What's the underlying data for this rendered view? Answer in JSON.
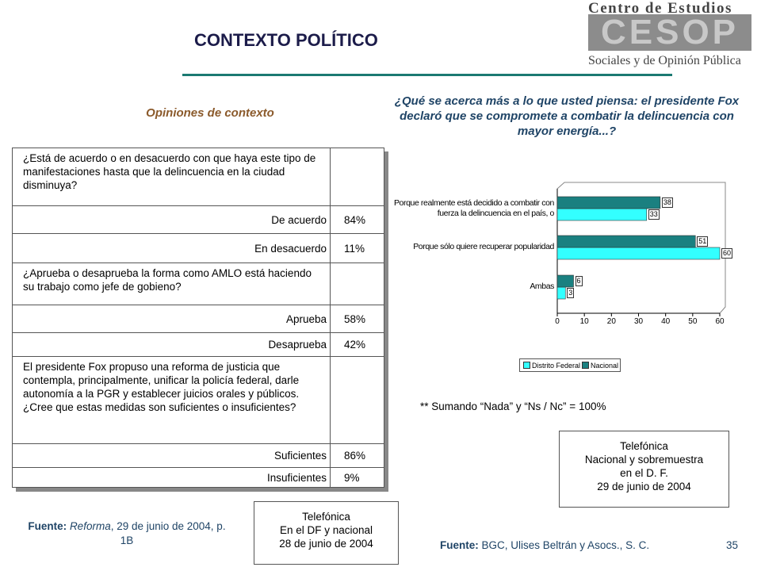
{
  "header": {
    "title": "CONTEXTO POLÍTICO",
    "logo": {
      "line1": "Centro de Estudios",
      "mark": "CESOP",
      "line2": "Sociales y de Opinión Pública"
    }
  },
  "table_title": "Opiniones de contexto",
  "table": {
    "rows": [
      {
        "question": "¿Está de acuerdo o en desacuerdo con que haya este tipo de manifestaciones hasta que la delincuencia en la ciudad disminuya?"
      },
      {
        "answer": "De acuerdo",
        "value": "84%"
      },
      {
        "answer": "En desacuerdo",
        "value": "11%"
      },
      {
        "question": "¿Aprueba o desaprueba la forma como AMLO está haciendo su trabajo como jefe de gobieno?"
      },
      {
        "answer": "Aprueba",
        "value": "58%"
      },
      {
        "answer": "Desaprueba",
        "value": "42%"
      },
      {
        "question": "El presidente Fox propuso una reforma de justicia que contempla, principalmente, unificar la policía federal, darle autonomía a la PGR y establecer juicios orales y públicos. ¿Cree que estas medidas son suficientes o insuficientes?"
      },
      {
        "answer": "Suficientes",
        "value": "86%"
      },
      {
        "answer": "Insuficientes",
        "value": "9%"
      }
    ]
  },
  "source_left": {
    "label": "Fuente:",
    "publication": "Reforma",
    "rest": ", 29 de junio de 2004, p. 1B"
  },
  "callout_left": [
    "Telefónica",
    "En el DF y nacional",
    "28 de junio de 2004"
  ],
  "chart_data": {
    "type": "bar",
    "orientation": "horizontal",
    "title": "¿Qué se acerca más a lo que usted piensa: el presidente Fox declaró que se compromete a combatir la delincuencia con mayor energía...?",
    "categories": [
      "Porque realmente está decidido a combatir con fuerza la delincuencia en el país, o",
      "Porque sólo quiere recuperar popularidad",
      "Ambas"
    ],
    "series": [
      {
        "name": "Distrito Federal",
        "color": "#33ffff",
        "values": [
          33,
          60,
          3
        ]
      },
      {
        "name": "Nacional",
        "color": "#1a8080",
        "values": [
          38,
          51,
          6
        ]
      }
    ],
    "xlim": [
      0,
      60
    ],
    "xticks": [
      0,
      10,
      20,
      30,
      40,
      50,
      60
    ],
    "legend": "bottom"
  },
  "note": "** Sumando “Nada” y “Ns / Nc” = 100%",
  "callout_right": [
    "Telefónica",
    "Nacional y sobremuestra",
    "en el D. F.",
    "29 de junio de 2004"
  ],
  "source_right": {
    "label": "Fuente:",
    "text": "BGC, Ulises Beltrán y Asocs., S. C."
  },
  "page_number": "35"
}
